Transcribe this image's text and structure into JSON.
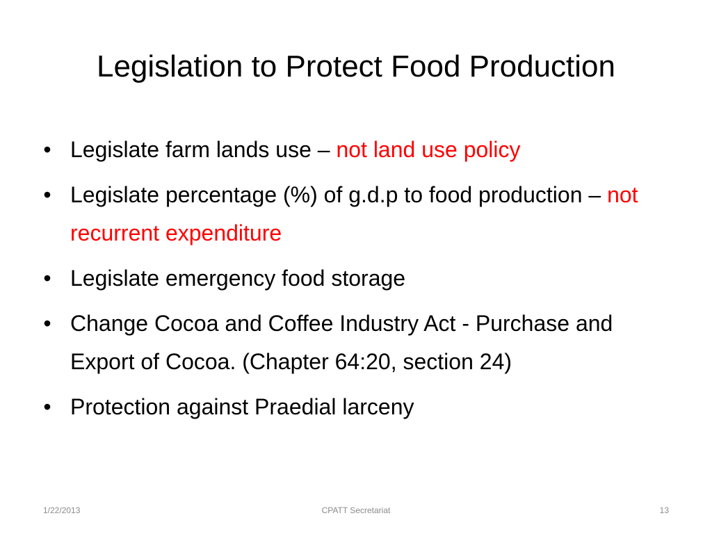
{
  "slide": {
    "title": "Legislation to Protect Food Production",
    "bullets": [
      {
        "text": "Legislate farm lands use – ",
        "highlight": "not land use policy"
      },
      {
        "text": "Legislate percentage (%) of g.d.p to food production – ",
        "highlight": "not recurrent expenditure"
      },
      {
        "text": "Legislate emergency food storage",
        "highlight": ""
      },
      {
        "text": "Change Cocoa and Coffee Industry Act - Purchase and Export of Cocoa. (Chapter 64:20, section 24)",
        "highlight": ""
      },
      {
        "text": "Protection against Praedial larceny",
        "highlight": ""
      }
    ],
    "bullet_glyph": "•",
    "highlight_color": "#ff0000"
  },
  "footer": {
    "date": "1/22/2013",
    "center": "CPATT Secretariat",
    "page": "13"
  }
}
